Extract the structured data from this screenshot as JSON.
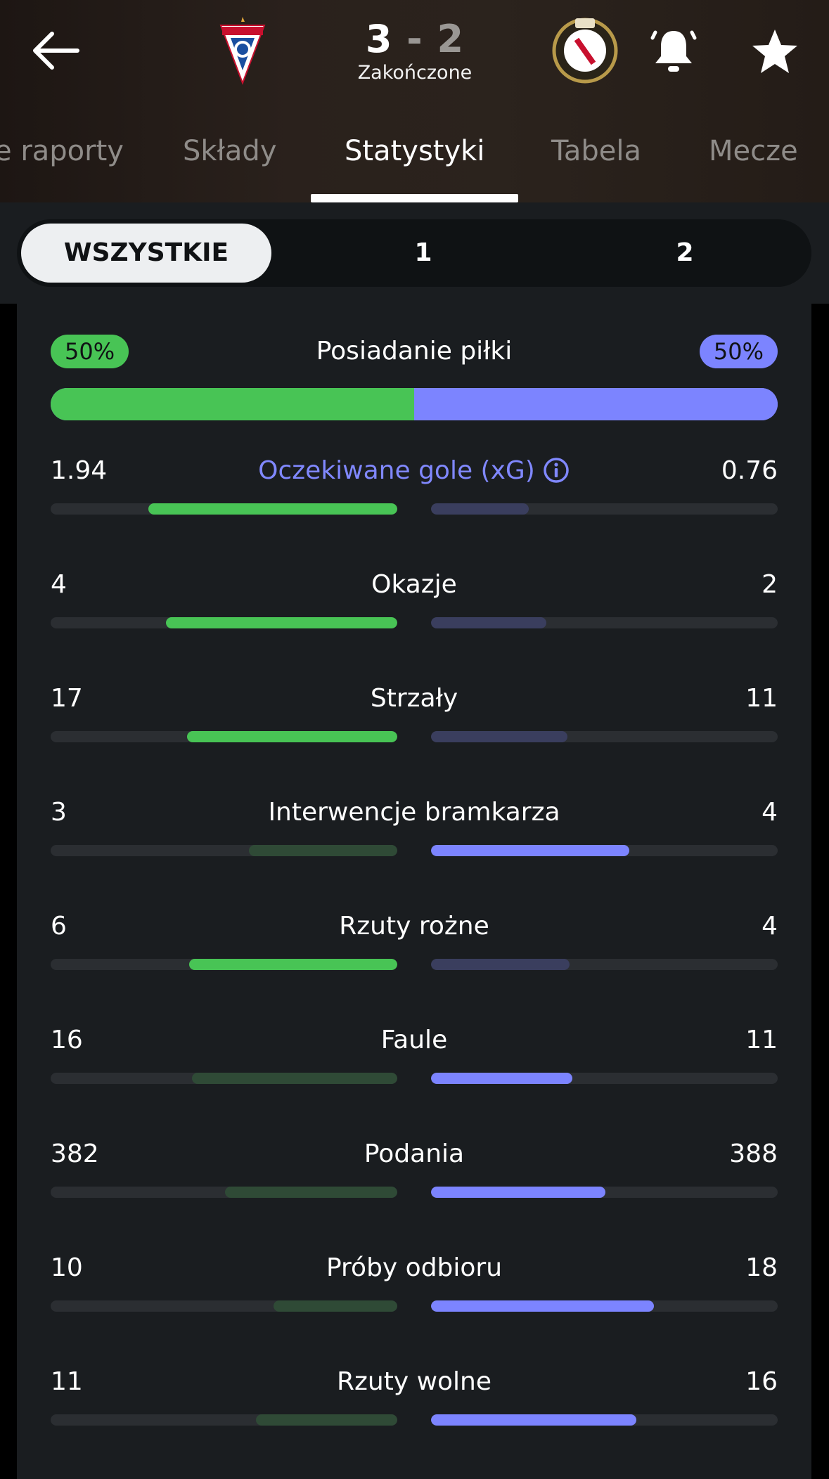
{
  "header": {
    "home_score": "3",
    "separator": "-",
    "away_score": "2",
    "status": "Zakończone"
  },
  "tabs": [
    {
      "label": "e raporty"
    },
    {
      "label": "Składy"
    },
    {
      "label": "Statystyki",
      "active": true
    },
    {
      "label": "Tabela"
    },
    {
      "label": "Mecze"
    }
  ],
  "segments": [
    {
      "label": "WSZYSTKIE",
      "active": true
    },
    {
      "label": "1"
    },
    {
      "label": "2"
    }
  ],
  "colors": {
    "home": "#48c455",
    "home_dim": "#2f4a36",
    "away": "#7c84ff",
    "away_dim": "#3a3e5e",
    "track": "#2b2e32"
  },
  "possession": {
    "label": "Posiadanie piłki",
    "home": "50%",
    "away": "50%",
    "home_fraction": 0.5
  },
  "stats": [
    {
      "name": "Oczekiwane gole (xG)",
      "home": "1.94",
      "away": "0.76",
      "home_val": 1.94,
      "away_val": 0.76,
      "link": true,
      "info_icon": "info-icon",
      "home_highlight": true,
      "away_highlight": false
    },
    {
      "name": "Okazje",
      "home": "4",
      "away": "2",
      "home_val": 4,
      "away_val": 2,
      "home_highlight": true,
      "away_highlight": false
    },
    {
      "name": "Strzały",
      "home": "17",
      "away": "11",
      "home_val": 17,
      "away_val": 11,
      "home_highlight": true,
      "away_highlight": false
    },
    {
      "name": "Interwencje bramkarza",
      "home": "3",
      "away": "4",
      "home_val": 3,
      "away_val": 4,
      "home_highlight": false,
      "away_highlight": true
    },
    {
      "name": "Rzuty rożne",
      "home": "6",
      "away": "4",
      "home_val": 6,
      "away_val": 4,
      "home_highlight": true,
      "away_highlight": false
    },
    {
      "name": "Faule",
      "home": "16",
      "away": "11",
      "home_val": 16,
      "away_val": 11,
      "home_highlight": false,
      "away_highlight": true
    },
    {
      "name": "Podania",
      "home": "382",
      "away": "388",
      "home_val": 382,
      "away_val": 388,
      "home_highlight": false,
      "away_highlight": true
    },
    {
      "name": "Próby odbioru",
      "home": "10",
      "away": "18",
      "home_val": 10,
      "away_val": 18,
      "home_highlight": false,
      "away_highlight": true
    },
    {
      "name": "Rzuty wolne",
      "home": "11",
      "away": "16",
      "home_val": 11,
      "away_val": 16,
      "home_highlight": false,
      "away_highlight": true
    }
  ]
}
